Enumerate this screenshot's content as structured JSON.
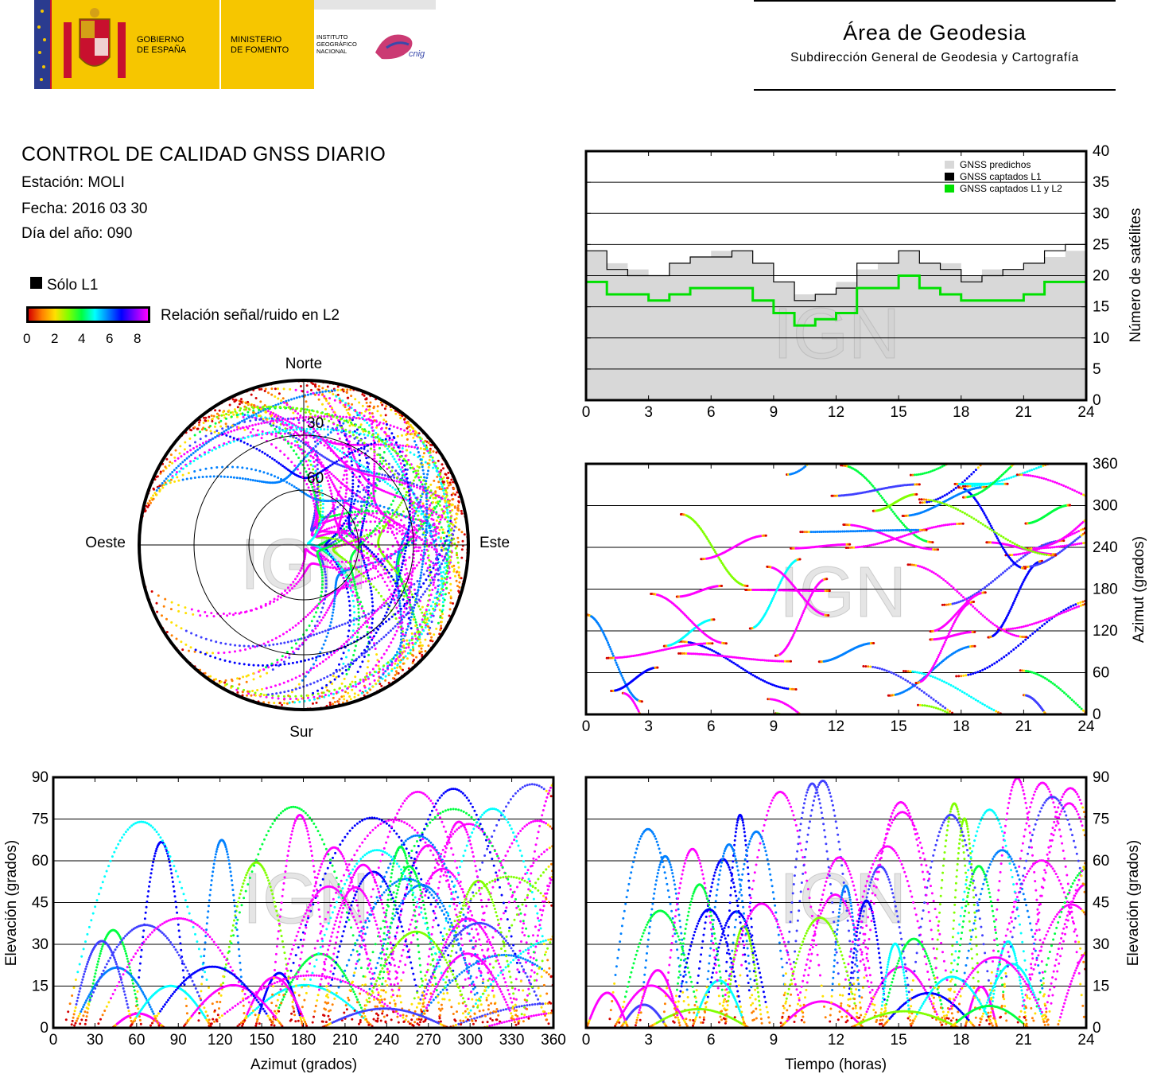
{
  "header": {
    "gobierno": [
      "GOBIERNO",
      "DE ESPAÑA"
    ],
    "ministerio": [
      "MINISTERIO",
      "DE FOMENTO"
    ],
    "instituto": [
      "INSTITUTO",
      "GEOGRÁFICO",
      "NACIONAL"
    ],
    "cnig": "cnig",
    "area_title": "Área de Geodesia",
    "area_subtitle": "Subdirección General de Geodesia y Cartografía",
    "colors": {
      "gov_yellow": "#f6c600",
      "gov_red": "#c8102e",
      "eu_blue": "#2a3b8f"
    }
  },
  "report": {
    "title": "CONTROL DE CALIDAD GNSS DIARIO",
    "station": "Estación: MOLI",
    "date": "Fecha: 2016 03 30",
    "doy": "Día del año: 090"
  },
  "legend": {
    "l1_only": "Sólo L1",
    "snr_label": "Relación señal/ruido en L2",
    "snr_ticks": [
      "0",
      "2",
      "4",
      "6",
      "8"
    ],
    "snr_colors": [
      "#d40000",
      "#ff8000",
      "#ffe000",
      "#80ff00",
      "#00ff40",
      "#00ffff",
      "#0080ff",
      "#0000ff",
      "#8000ff",
      "#ff00ff"
    ]
  },
  "watermark": "IGN",
  "chart_data": [
    {
      "id": "skyplot",
      "type": "scatter",
      "title": "",
      "directions": {
        "north": "Norte",
        "south": "Sur",
        "east": "Este",
        "west": "Oeste"
      },
      "ring_labels": [
        "30",
        "60"
      ],
      "note": ""
    },
    {
      "id": "sat-count",
      "type": "line",
      "xlabel": "",
      "ylabel": "Número de satélites",
      "xlim": [
        0,
        24
      ],
      "ylim": [
        0,
        40
      ],
      "xticks": [
        "0",
        "3",
        "6",
        "9",
        "12",
        "15",
        "18",
        "21",
        "24"
      ],
      "yticks": [
        "0",
        "5",
        "10",
        "15",
        "20",
        "25",
        "30",
        "35",
        "40"
      ],
      "legend": [
        "GNSS predichos",
        "GNSS captados L1",
        "GNSS captados L1 y L2"
      ],
      "series": [
        {
          "name": "GNSS predichos",
          "color": "#d8d8d8",
          "x": [
            0,
            1,
            2,
            3,
            4,
            5,
            6,
            7,
            8,
            9,
            10,
            11,
            12,
            13,
            14,
            15,
            16,
            17,
            18,
            19,
            20,
            21,
            22,
            23,
            24
          ],
          "values": [
            24,
            22,
            21,
            20,
            22,
            23,
            24,
            24,
            22,
            19,
            17,
            17,
            19,
            21,
            22,
            24,
            22,
            22,
            20,
            21,
            21,
            22,
            23,
            24,
            24
          ]
        },
        {
          "name": "GNSS captados L1",
          "color": "#000000",
          "x": [
            0,
            1,
            2,
            3,
            4,
            5,
            6,
            7,
            8,
            9,
            10,
            11,
            12,
            13,
            14,
            15,
            16,
            17,
            18,
            19,
            20,
            21,
            22,
            23,
            24
          ],
          "values": [
            24,
            21,
            20,
            20,
            22,
            23,
            23,
            24,
            22,
            19,
            16,
            17,
            18,
            22,
            22,
            24,
            22,
            21,
            19,
            20,
            21,
            22,
            24,
            25,
            24
          ]
        },
        {
          "name": "GNSS captados L1 y L2",
          "color": "#00e000",
          "x": [
            0,
            1,
            2,
            3,
            4,
            5,
            6,
            7,
            8,
            9,
            10,
            11,
            12,
            13,
            14,
            15,
            16,
            17,
            18,
            19,
            20,
            21,
            22,
            23,
            24
          ],
          "values": [
            19,
            17,
            17,
            16,
            17,
            18,
            18,
            18,
            16,
            14,
            12,
            13,
            14,
            18,
            18,
            20,
            18,
            17,
            16,
            16,
            16,
            17,
            19,
            19,
            19
          ]
        }
      ]
    },
    {
      "id": "azimuth-time",
      "type": "scatter",
      "xlabel": "",
      "ylabel": "Azimut (grados)",
      "xlim": [
        0,
        24
      ],
      "ylim": [
        0,
        360
      ],
      "xticks": [
        "0",
        "3",
        "6",
        "9",
        "12",
        "15",
        "18",
        "21",
        "24"
      ],
      "yticks": [
        "0",
        "60",
        "120",
        "180",
        "240",
        "300",
        "360"
      ]
    },
    {
      "id": "elev-azimuth",
      "type": "scatter",
      "xlabel": "Azimut (grados)",
      "ylabel": "Elevación (grados)",
      "xlim": [
        0,
        360
      ],
      "ylim": [
        0,
        90
      ],
      "xticks": [
        "0",
        "30",
        "60",
        "90",
        "120",
        "150",
        "180",
        "210",
        "240",
        "270",
        "300",
        "330",
        "360"
      ],
      "yticks": [
        "0",
        "15",
        "30",
        "45",
        "60",
        "75",
        "90"
      ]
    },
    {
      "id": "elev-time",
      "type": "scatter",
      "xlabel": "Tiempo (horas)",
      "ylabel": "Elevación (grados)",
      "xlim": [
        0,
        24
      ],
      "ylim": [
        0,
        90
      ],
      "xticks": [
        "0",
        "3",
        "6",
        "9",
        "12",
        "15",
        "18",
        "21",
        "24"
      ],
      "yticks": [
        "0",
        "15",
        "30",
        "45",
        "60",
        "75",
        "90"
      ]
    }
  ]
}
